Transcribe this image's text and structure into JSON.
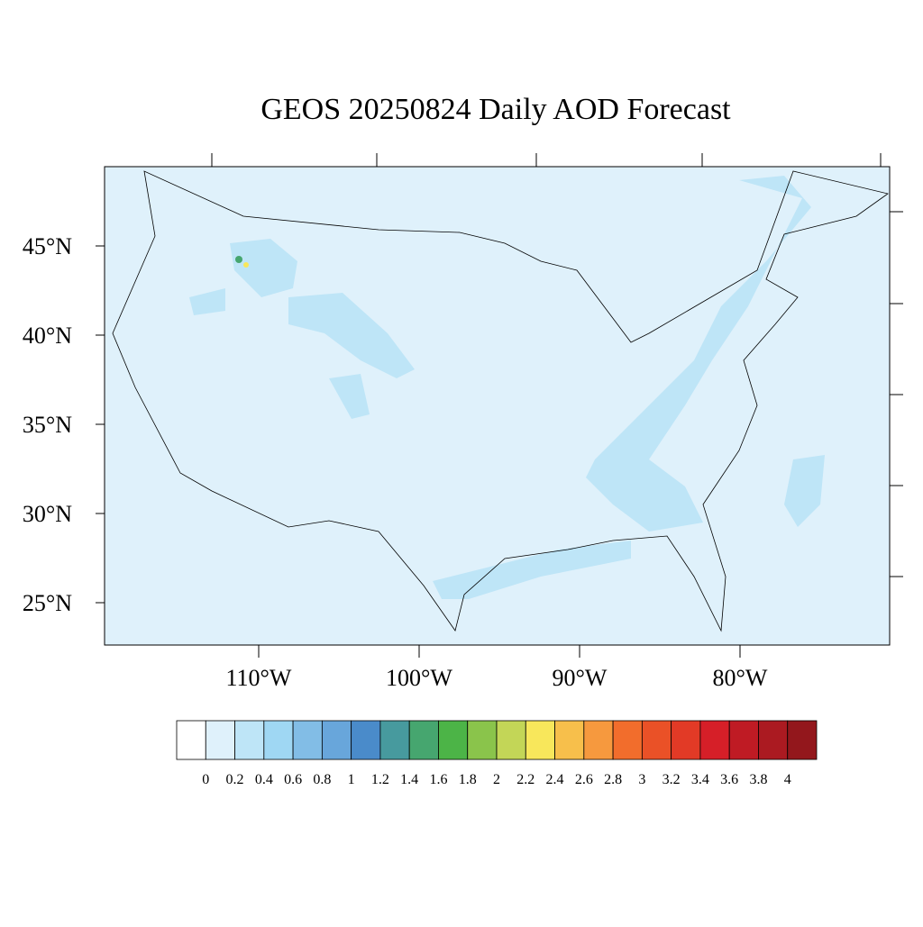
{
  "title": "GEOS 20250824 Daily AOD Forecast",
  "map": {
    "lat_ticks": [
      {
        "value": 25,
        "label": "25°N"
      },
      {
        "value": 30,
        "label": "30°N"
      },
      {
        "value": 35,
        "label": "35°N"
      },
      {
        "value": 40,
        "label": "40°N"
      },
      {
        "value": 45,
        "label": "45°N"
      }
    ],
    "lon_ticks": [
      {
        "value": -110,
        "label": "110°W"
      },
      {
        "value": -100,
        "label": "100°W"
      },
      {
        "value": -90,
        "label": "90°W"
      },
      {
        "value": -80,
        "label": "80°W"
      }
    ]
  },
  "colorbar": {
    "levels": [
      0,
      0.2,
      0.4,
      0.6,
      0.8,
      1,
      1.2,
      1.4,
      1.6,
      1.8,
      2,
      2.2,
      2.4,
      2.6,
      2.8,
      3,
      3.2,
      3.4,
      3.6,
      3.8,
      4
    ],
    "colors": [
      "#ffffff",
      "#dff1fb",
      "#bee5f7",
      "#9fd7f3",
      "#82bde6",
      "#68a6db",
      "#4a8bca",
      "#479a9e",
      "#46a66f",
      "#4cb447",
      "#8ac44b",
      "#c3d657",
      "#f8e75b",
      "#f7bf4b",
      "#f6993e",
      "#f26d2c",
      "#ea5127",
      "#e23a26",
      "#d61f28",
      "#bf1b24",
      "#ab1a21",
      "#93171c"
    ]
  }
}
